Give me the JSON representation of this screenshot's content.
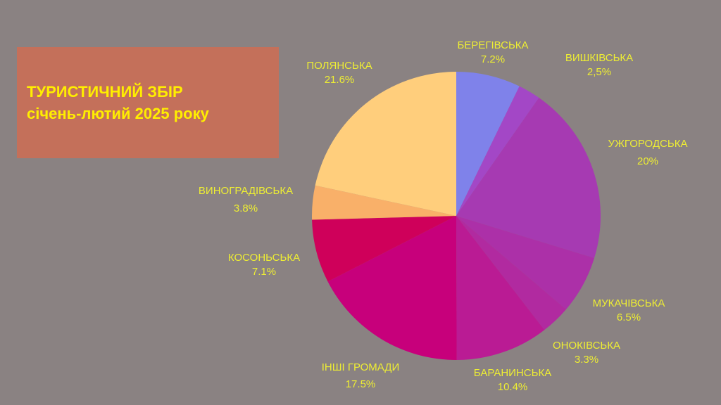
{
  "title": {
    "line1": "ТУРИСТИЧНИЙ ЗБІР",
    "line2": "січень-лютий 2025 року"
  },
  "chart_data": {
    "type": "pie",
    "start_angle_deg": 0,
    "direction": "clockwise",
    "slices": [
      {
        "name": "БЕРЕГІВСЬКА",
        "label": "7.2%",
        "value": 7.2,
        "color": "#7f82ea"
      },
      {
        "name": "ВИШКІВСЬКА",
        "label": "2,5%",
        "value": 2.5,
        "color": "#a347c6"
      },
      {
        "name": "УЖГОРОДСЬКА",
        "label": "20%",
        "value": 20,
        "color": "#a63ab2"
      },
      {
        "name": "МУКАЧІВСЬКА",
        "label": "6.5%",
        "value": 6.5,
        "color": "#ac30a8"
      },
      {
        "name": "ОНОКІВСЬКА",
        "label": "3.3%",
        "value": 3.3,
        "color": "#b12aa0"
      },
      {
        "name": "БАРАНИНСЬКА",
        "label": "10.4%",
        "value": 10.4,
        "color": "#ba1b94"
      },
      {
        "name": "ІНШІ ГРОМАДИ",
        "label": "17.5%",
        "value": 17.5,
        "color": "#c7007b"
      },
      {
        "name": "КОСОНЬСЬКА",
        "label": "7.1%",
        "value": 7.1,
        "color": "#cf005a"
      },
      {
        "name": "ВИНОГРАДІВСЬКА",
        "label": "3.8%",
        "value": 3.8,
        "color": "#f9b069"
      },
      {
        "name": "ПОЛЯНСЬКА",
        "label": "21.6%",
        "value": 21.6,
        "color": "#ffce7c"
      }
    ]
  }
}
